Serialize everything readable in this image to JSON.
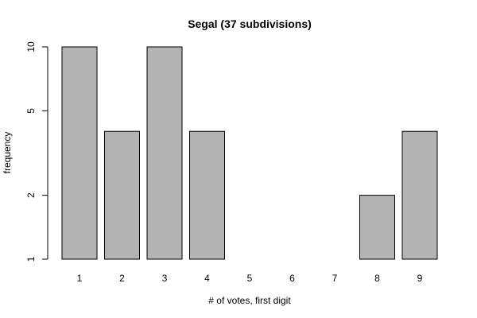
{
  "chart_data": {
    "type": "bar",
    "title": "Segal (37 subdivisions)",
    "xlabel": "# of votes, first digit",
    "ylabel": "frequency",
    "categories": [
      "1",
      "2",
      "3",
      "4",
      "5",
      "6",
      "7",
      "8",
      "9"
    ],
    "values": [
      10,
      4,
      10,
      4,
      1,
      1,
      1,
      2,
      4
    ],
    "y_scale": "log",
    "ylim": [
      1,
      10
    ],
    "y_ticks": [
      1,
      2,
      5,
      10
    ],
    "y_tick_labels": [
      "1",
      "2",
      "5",
      "10"
    ],
    "bar_color": "#b3b3b3",
    "grid": false,
    "legend": "none"
  }
}
